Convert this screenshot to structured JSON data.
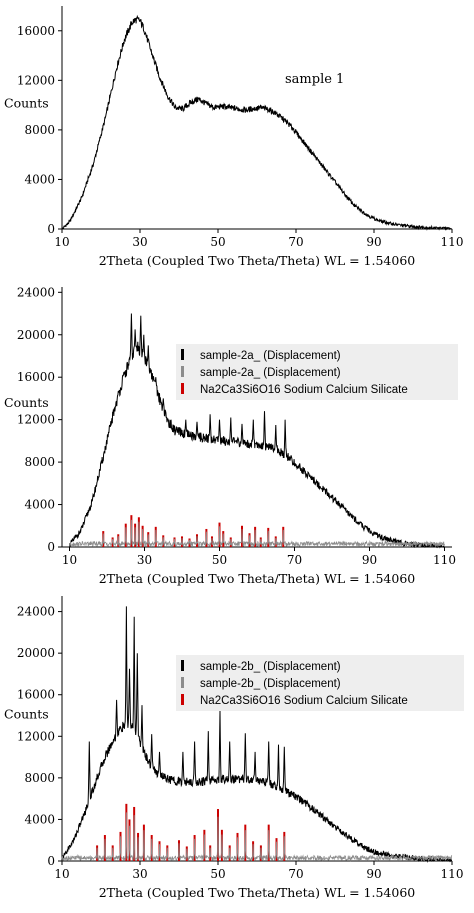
{
  "chart_data": [
    {
      "type": "line",
      "title": "",
      "xlabel": "2Theta (Coupled Two Theta/Theta) WL = 1.54060",
      "ylabel": "Counts",
      "xlim": [
        10,
        110
      ],
      "ylim": [
        0,
        18000
      ],
      "xticks": [
        10,
        30,
        50,
        70,
        90,
        110
      ],
      "yticks": [
        0,
        4000,
        8000,
        12000,
        16000
      ],
      "annotation": "sample 1",
      "grid": false,
      "series": [
        {
          "color": "#000000",
          "x": [
            10,
            12,
            15,
            18,
            21,
            24,
            26,
            28,
            29,
            30,
            31,
            33,
            35,
            37,
            39,
            41,
            43,
            45,
            47,
            49,
            51,
            53,
            55,
            57,
            59,
            61,
            63,
            65,
            67,
            69,
            71,
            73,
            75,
            77,
            79,
            81,
            83,
            85,
            87,
            89,
            91,
            94,
            97,
            100,
            104,
            108,
            110
          ],
          "y": [
            0,
            600,
            2500,
            5200,
            8800,
            13000,
            15300,
            16700,
            16900,
            16800,
            16200,
            14200,
            12300,
            10800,
            9800,
            9700,
            10200,
            10500,
            10100,
            9800,
            9900,
            9800,
            9700,
            9600,
            9700,
            9800,
            9650,
            9300,
            8800,
            8200,
            7400,
            6600,
            5800,
            5000,
            4200,
            3400,
            2600,
            1900,
            1400,
            1000,
            700,
            450,
            300,
            200,
            100,
            50,
            0
          ]
        }
      ]
    },
    {
      "type": "line",
      "title": "",
      "xlabel": "2Theta (Coupled Two Theta/Theta) WL = 1.54060",
      "ylabel": "Counts",
      "xlim": [
        8,
        112
      ],
      "ylim": [
        0,
        24500
      ],
      "xticks": [
        10,
        30,
        50,
        70,
        90,
        110
      ],
      "yticks": [
        0,
        4000,
        8000,
        12000,
        16000,
        20000,
        24000
      ],
      "grid": false,
      "legend": {
        "placement": "top-right",
        "entries": [
          "sample-2a_ (Displacement)",
          "sample-2a_ (Displacement)",
          "Na2Ca3Si6O16 Sodium Calcium Silicate"
        ]
      },
      "series": [
        {
          "name": "sample-2a_ (Displacement)",
          "color": "#000000",
          "x": [
            10,
            13,
            16,
            19,
            22,
            24,
            26,
            27,
            28,
            29,
            30,
            31,
            32,
            34,
            36,
            38,
            40,
            42,
            44,
            46,
            48,
            50,
            52,
            54,
            56,
            58,
            60,
            62,
            64,
            66,
            68,
            70,
            73,
            76,
            79,
            82,
            85,
            88,
            91,
            94,
            98,
            102,
            106,
            110
          ],
          "y": [
            200,
            1500,
            4200,
            8500,
            13000,
            15500,
            17500,
            18300,
            18800,
            18500,
            17800,
            17000,
            16000,
            14000,
            12000,
            11000,
            10700,
            10500,
            10400,
            10300,
            10200,
            10100,
            10000,
            9900,
            9800,
            9700,
            9700,
            9500,
            9300,
            9000,
            8600,
            7900,
            7000,
            6000,
            5000,
            4000,
            3000,
            2000,
            1300,
            800,
            400,
            200,
            100,
            0
          ]
        },
        {
          "name": "sample-2a_ (Displacement)",
          "color": "#8c8c8c",
          "x": [
            10,
            30,
            50,
            70,
            90,
            110
          ],
          "y": [
            300,
            300,
            300,
            300,
            300,
            300
          ]
        }
      ],
      "reference_peaks": {
        "name": "Na2Ca3Si6O16 Sodium Calcium Silicate",
        "color": "#cc0000",
        "x": [
          19,
          21.5,
          23,
          25,
          26.5,
          27.5,
          28.5,
          29.5,
          31,
          33,
          35,
          38,
          40,
          42,
          44,
          46.5,
          48,
          50,
          51,
          53,
          56,
          58,
          59.5,
          61,
          63,
          65,
          67
        ],
        "y": [
          1500,
          900,
          1200,
          2200,
          3000,
          2200,
          2800,
          2000,
          1400,
          1900,
          1100,
          900,
          1000,
          800,
          1200,
          1700,
          1000,
          2300,
          1500,
          900,
          2000,
          1300,
          1900,
          900,
          1800,
          1000,
          1900
        ]
      },
      "sharp_peaks": {
        "x": [
          26.5,
          27.5,
          29,
          29.8,
          31,
          33,
          35,
          41,
          44,
          47.5,
          50,
          53,
          56,
          59,
          62,
          65,
          67.5
        ],
        "y": [
          22000,
          20500,
          21800,
          20000,
          19000,
          16000,
          14000,
          12000,
          11800,
          12500,
          12000,
          12200,
          11600,
          12000,
          12800,
          11500,
          12000
        ]
      }
    },
    {
      "type": "line",
      "title": "",
      "xlabel": "2Theta (Coupled Two Theta/Theta) WL = 1.54060",
      "ylabel": "Counts",
      "xlim": [
        10,
        110
      ],
      "ylim": [
        0,
        25500
      ],
      "xticks": [
        10,
        30,
        50,
        70,
        90,
        110
      ],
      "yticks": [
        0,
        4000,
        8000,
        12000,
        16000,
        20000,
        24000
      ],
      "grid": false,
      "legend": {
        "placement": "top-right",
        "entries": [
          "sample-2b_ (Displacement)",
          "sample-2b_ (Displacement)",
          "Na2Ca3Si6O16 Sodium Calcium Silicate"
        ]
      },
      "series": [
        {
          "name": "sample-2b_ (Displacement)",
          "color": "#000000",
          "x": [
            10,
            13,
            16,
            19,
            21,
            23,
            25,
            26,
            27,
            28,
            29,
            30,
            31,
            33,
            35,
            37,
            39,
            41,
            43,
            45,
            47,
            49,
            51,
            53,
            55,
            57,
            59,
            61,
            63,
            65,
            67,
            70,
            73,
            76,
            79,
            82,
            85,
            88,
            91,
            95,
            100,
            105,
            110
          ],
          "y": [
            200,
            2000,
            4800,
            8000,
            10000,
            11500,
            12700,
            13000,
            13300,
            13000,
            12500,
            11500,
            10500,
            9000,
            8300,
            7900,
            7700,
            7600,
            7600,
            7600,
            7700,
            7800,
            7900,
            7900,
            7900,
            7900,
            7800,
            7700,
            7500,
            7200,
            6800,
            6200,
            5400,
            4500,
            3600,
            2700,
            1900,
            1200,
            800,
            500,
            300,
            150,
            50
          ]
        },
        {
          "name": "sample-2b_ (Displacement)",
          "color": "#8c8c8c",
          "x": [
            10,
            30,
            50,
            70,
            90,
            110
          ],
          "y": [
            300,
            300,
            300,
            300,
            300,
            300
          ]
        }
      ],
      "reference_peaks": {
        "name": "Na2Ca3Si6O16 Sodium Calcium Silicate",
        "color": "#cc0000",
        "x": [
          19,
          21,
          23,
          25,
          26.5,
          27.3,
          28.5,
          29.5,
          31,
          33,
          35,
          37,
          40,
          42,
          44,
          46.5,
          48,
          50,
          51,
          53,
          55,
          57,
          59,
          61,
          63,
          65,
          67
        ],
        "y": [
          1500,
          2500,
          1500,
          2800,
          5500,
          4000,
          5200,
          2700,
          3500,
          2500,
          1900,
          1500,
          2000,
          1400,
          2500,
          3000,
          1500,
          5000,
          3000,
          1500,
          2700,
          3500,
          1900,
          1500,
          3500,
          2200,
          2800
        ]
      },
      "sharp_peaks": {
        "x": [
          17,
          24,
          26.5,
          27.3,
          28.5,
          29.3,
          30.5,
          33,
          35,
          41,
          44,
          47.5,
          50.5,
          53,
          57,
          59.5,
          63,
          65.5,
          67
        ],
        "y": [
          11500,
          15500,
          24500,
          18500,
          23500,
          20000,
          15000,
          12200,
          10500,
          10500,
          11500,
          12500,
          14500,
          11500,
          12300,
          10500,
          11500,
          11200,
          11000
        ]
      }
    }
  ]
}
